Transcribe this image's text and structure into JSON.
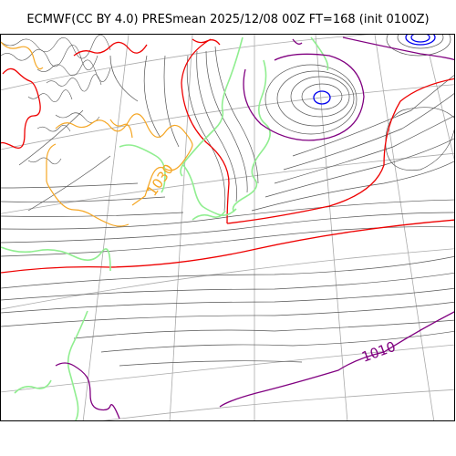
{
  "title": "ECMWF(CC BY 4.0) PRESmean 2025/12/08 00Z FT=168 (init 0100Z)",
  "contour_labels": [
    {
      "text": "1030",
      "color": "#f5a623"
    },
    {
      "text": "1010",
      "color": "#800080"
    }
  ],
  "colors": {
    "isobar": "#555555",
    "coast": "#90ee90",
    "graticule": "#aaaaaa",
    "red_isobar": "#ee0000",
    "purple_isobar": "#800080",
    "orange_isobar": "#f5a623",
    "blue_isobar": "#0000ee"
  }
}
